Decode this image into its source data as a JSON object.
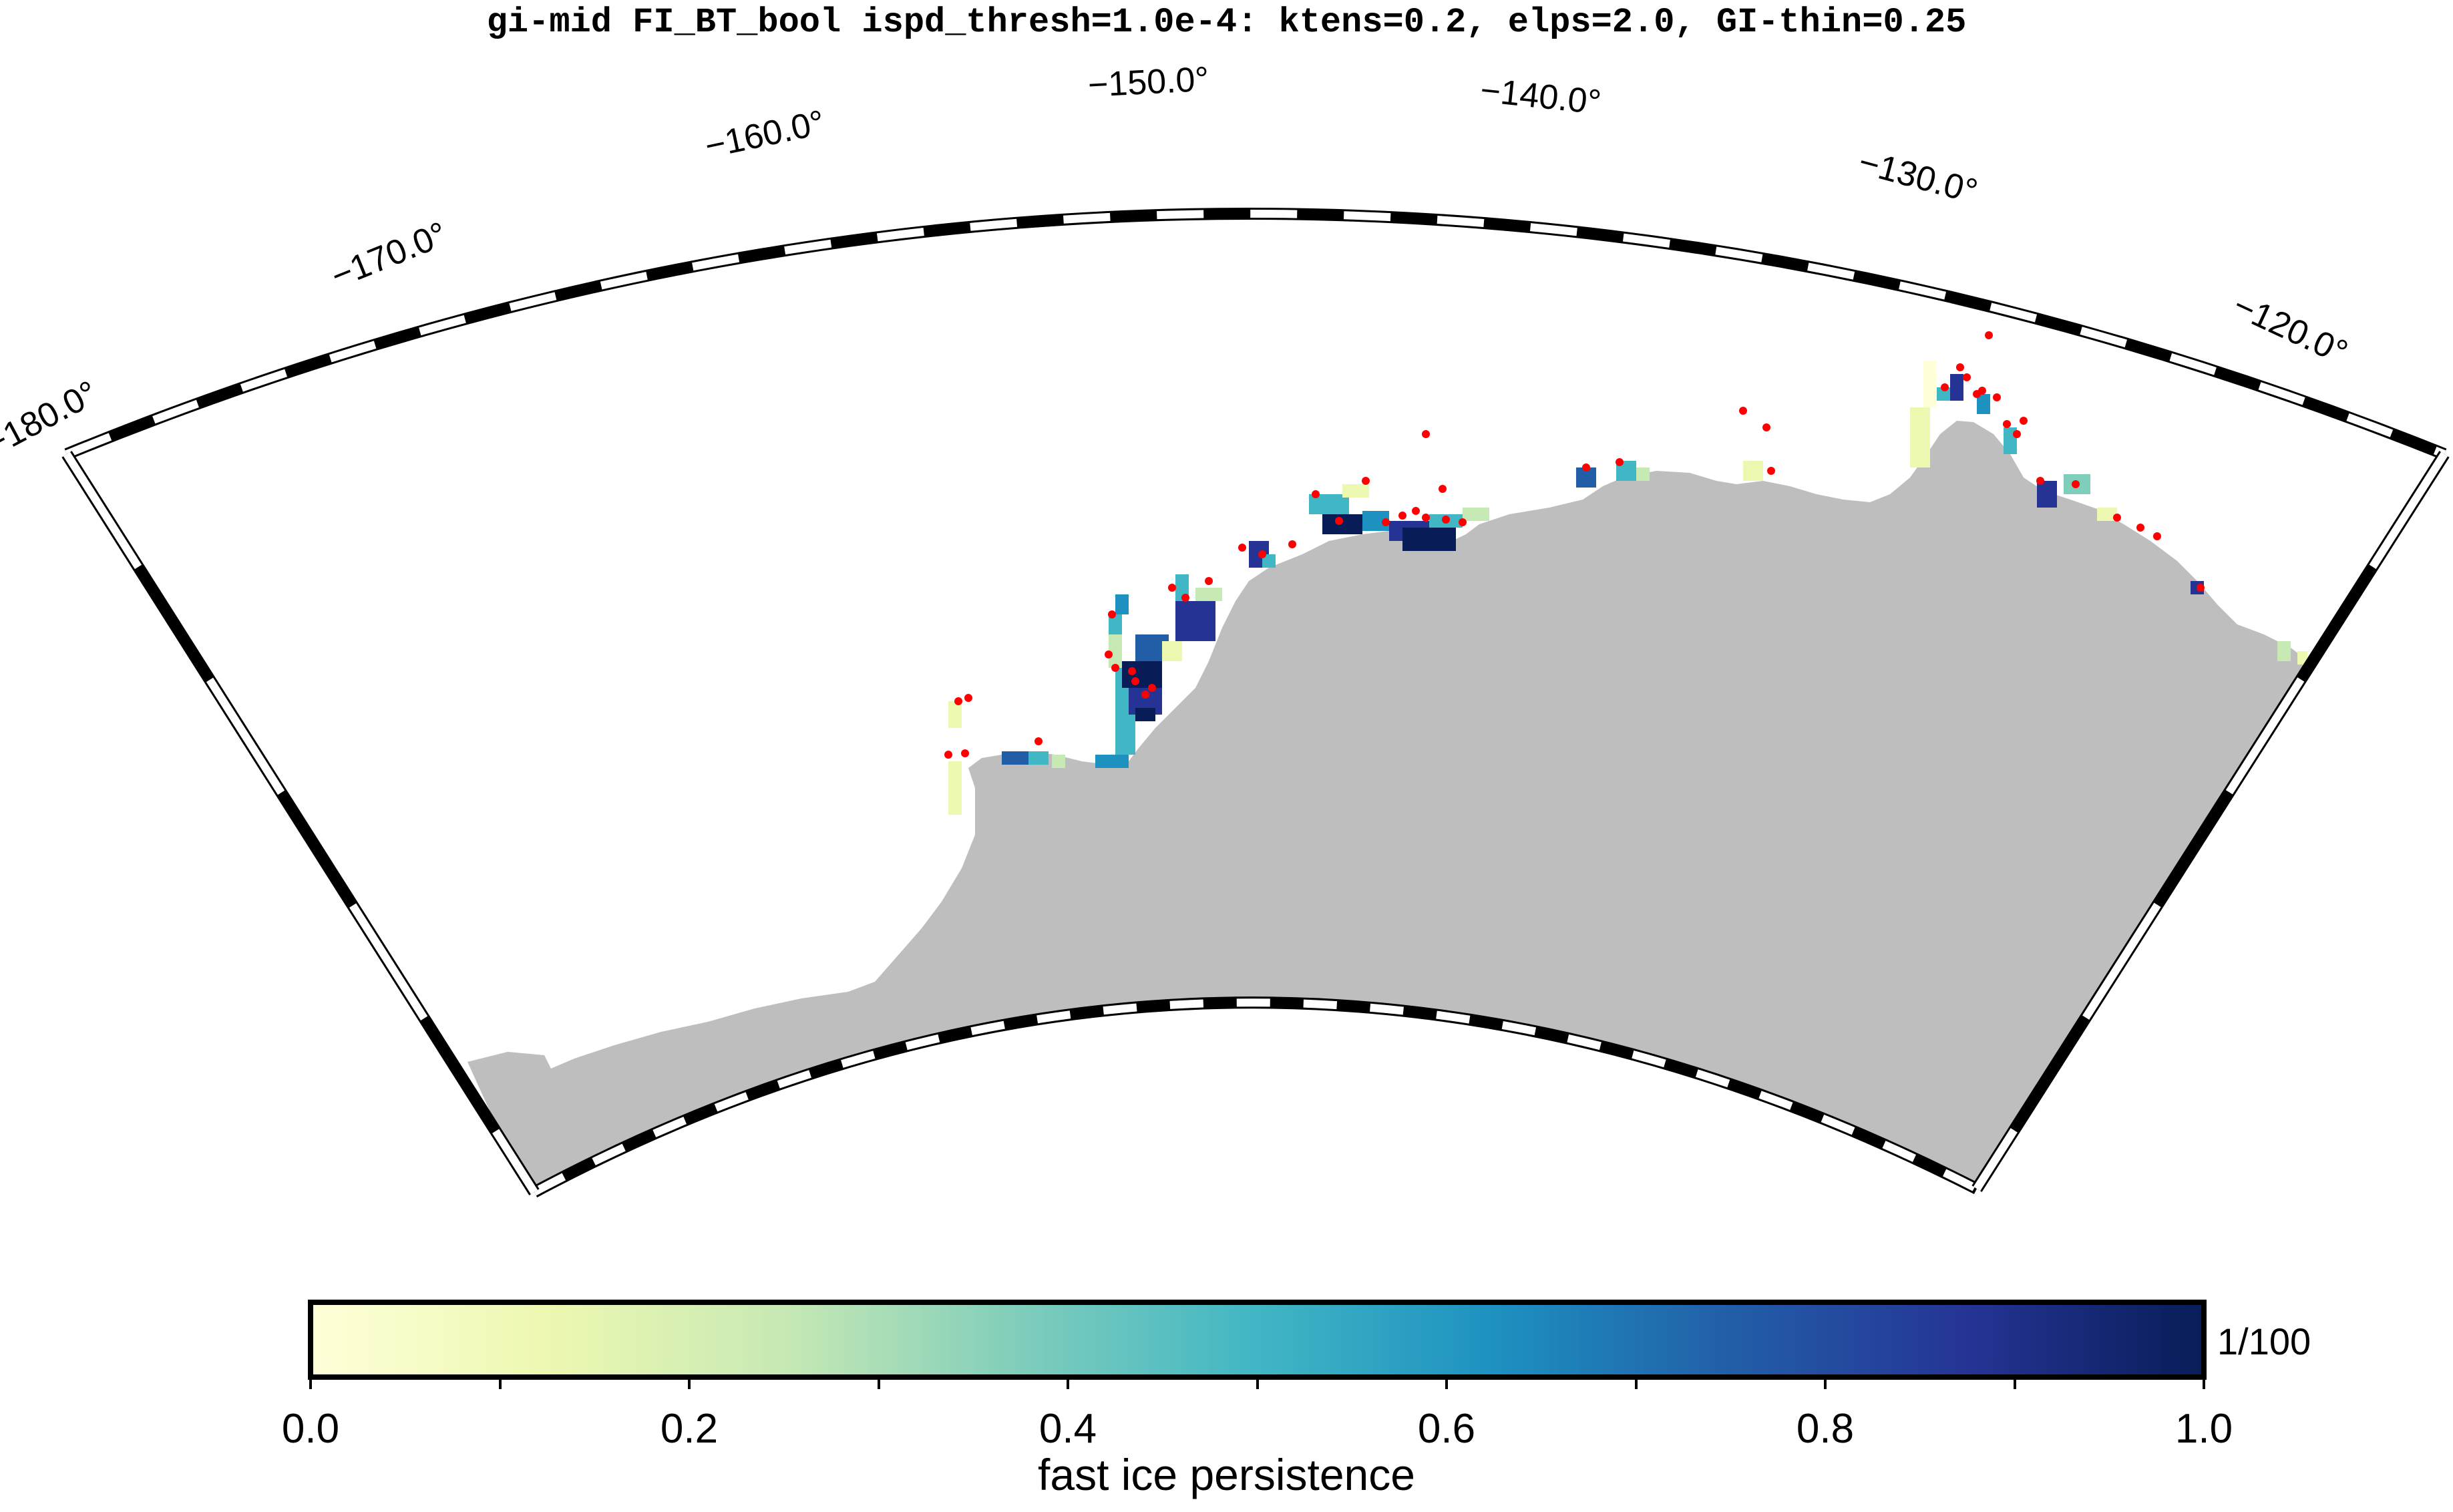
{
  "title": "gi-mid FI_BT_bool ispd_thresh=1.0e-4: ktens=0.2, elps=2.0, GI-thin=0.25",
  "map": {
    "projection": "polar stereographic sector",
    "lon_labels": [
      "−180.0°",
      "−170.0°",
      "−160.0°",
      "−150.0°",
      "−140.0°",
      "−130.0°",
      "−120.0°"
    ],
    "land_color": "#bebebe",
    "ocean_color": "#ffffff",
    "grounded_iceberg_marker_color": "#ff0000"
  },
  "colorbar": {
    "label": "fast ice persistence",
    "unit": "1/100",
    "ticks": [
      "0.0",
      "0.2",
      "0.4",
      "0.6",
      "0.8",
      "1.0"
    ],
    "range": [
      0.0,
      1.0
    ],
    "colormap": [
      "#ffffd9",
      "#edf8b1",
      "#c7e9b4",
      "#7fcdbb",
      "#41b6c4",
      "#1d91c0",
      "#225ea8",
      "#253494",
      "#081d58"
    ]
  }
}
